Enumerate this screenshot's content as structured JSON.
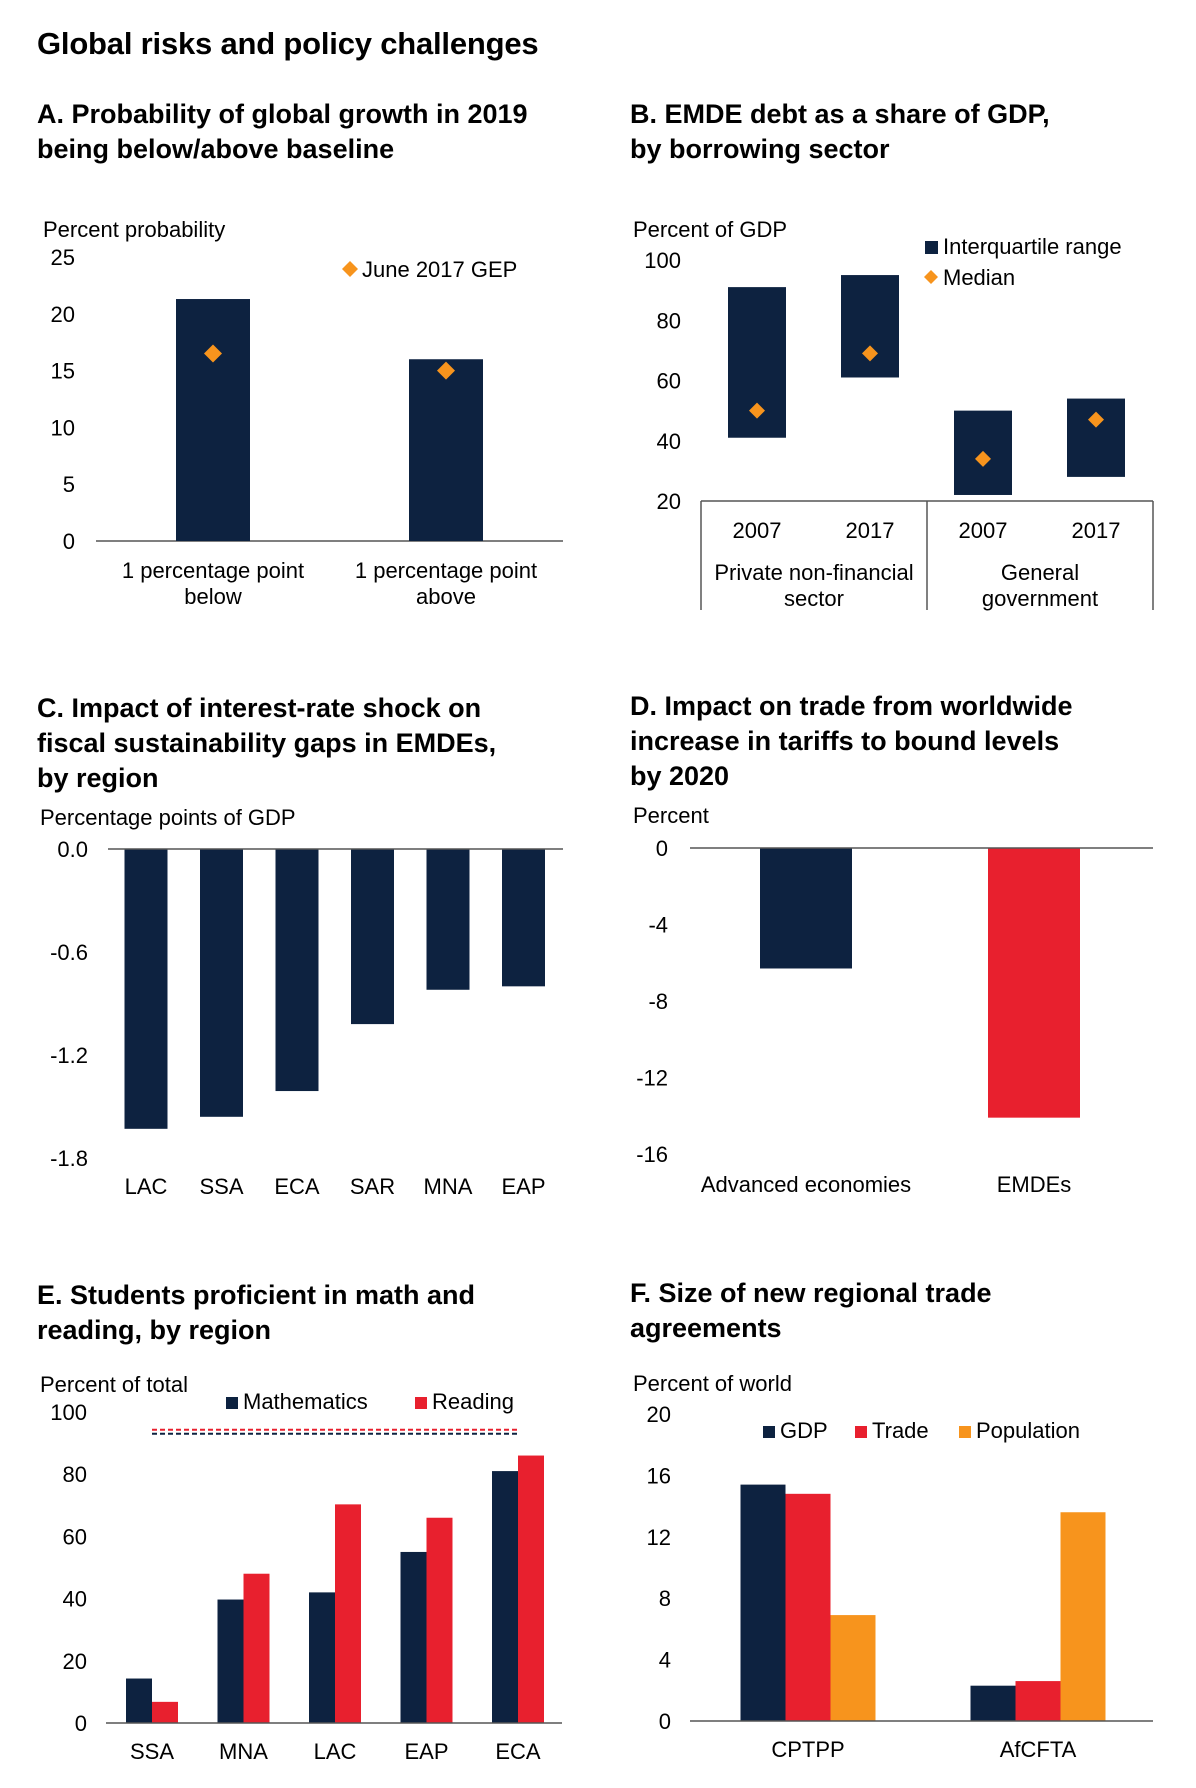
{
  "page_title": "Global risks and policy challenges",
  "colors": {
    "navy": "#0d2240",
    "red": "#e8202e",
    "orange": "#f7941d",
    "axis": "#555555"
  },
  "panels": {
    "A": {
      "title_lines": [
        "A. Probability of global growth in 2019",
        "being below/above baseline"
      ]
    },
    "B": {
      "title_lines": [
        "B. EMDE debt as a share of GDP,",
        "by borrowing sector"
      ]
    },
    "C": {
      "title_lines": [
        "C. Impact of interest-rate shock on",
        "fiscal sustainability gaps in EMDEs,",
        "by region"
      ]
    },
    "D": {
      "title_lines": [
        "D. Impact on trade from worldwide",
        "increase in tariffs to bound levels",
        "by 2020"
      ]
    },
    "E": {
      "title_lines": [
        "E. Students proficient in math and",
        "reading, by region"
      ]
    },
    "F": {
      "title_lines": [
        "F. Size of new regional trade",
        "agreements"
      ]
    }
  },
  "chart_data": [
    {
      "id": "A",
      "type": "bar",
      "ylabel": "Percent probability",
      "ylim": [
        0,
        25
      ],
      "yticks": [
        0,
        5,
        10,
        15,
        20,
        25
      ],
      "categories": [
        [
          "1 percentage point",
          "below"
        ],
        [
          "1 percentage point",
          "above"
        ]
      ],
      "series": [
        {
          "values": [
            21.3,
            16.0
          ]
        },
        {
          "name": "June 2017 GEP",
          "marker": "diamond",
          "values": [
            16.5,
            15.0
          ]
        }
      ]
    },
    {
      "id": "B",
      "type": "bar",
      "ylabel": "Percent of GDP",
      "ylim": [
        20,
        100
      ],
      "yticks": [
        20,
        40,
        60,
        80,
        100
      ],
      "legend": [
        "Interquartile range",
        "Median"
      ],
      "categories": [
        "2007",
        "2017",
        "2007",
        "2017"
      ],
      "groups": [
        [
          "Private non-financial",
          "sector"
        ],
        [
          "General",
          "government"
        ]
      ],
      "series": [
        {
          "name": "Interquartile range",
          "low": [
            41,
            61,
            22,
            28
          ],
          "high": [
            91,
            95,
            50,
            54
          ]
        },
        {
          "name": "Median",
          "marker": "diamond",
          "values": [
            50,
            69,
            34,
            47
          ]
        }
      ]
    },
    {
      "id": "C",
      "type": "bar",
      "ylabel": "Percentage points of GDP",
      "ylim": [
        -1.8,
        0
      ],
      "yticks": [
        "0.0",
        "-0.6",
        "-1.2",
        "-1.8"
      ],
      "categories": [
        "LAC",
        "SSA",
        "ECA",
        "SAR",
        "MNA",
        "EAP"
      ],
      "values": [
        -1.63,
        -1.56,
        -1.41,
        -1.02,
        -0.82,
        -0.8
      ]
    },
    {
      "id": "D",
      "type": "bar",
      "ylabel": "Percent",
      "ylim": [
        -16,
        0
      ],
      "yticks": [
        0,
        -4,
        -8,
        -12,
        -16
      ],
      "categories": [
        "Advanced economies",
        "EMDEs"
      ],
      "values": [
        -6.3,
        -14.1
      ],
      "colors": [
        "#0d2240",
        "#e8202e"
      ]
    },
    {
      "id": "E",
      "type": "bar",
      "ylabel": "Percent of total",
      "ylim": [
        0,
        100
      ],
      "yticks": [
        0,
        20,
        40,
        60,
        80,
        100
      ],
      "categories": [
        "SSA",
        "MNA",
        "LAC",
        "EAP",
        "ECA"
      ],
      "series": [
        {
          "name": "Mathematics",
          "values": [
            14.3,
            39.7,
            42.0,
            55.0,
            81.0
          ]
        },
        {
          "name": "Reading",
          "values": [
            6.8,
            48.0,
            70.3,
            66.0,
            86.0
          ]
        }
      ],
      "reference_lines": [
        {
          "series": "Mathematics",
          "value": 93.0
        },
        {
          "series": "Reading",
          "value": 94.3
        }
      ]
    },
    {
      "id": "F",
      "type": "bar",
      "ylabel": "Percent of world",
      "ylim": [
        0,
        20
      ],
      "yticks": [
        0,
        4,
        8,
        12,
        16,
        20
      ],
      "categories": [
        "CPTPP",
        "AfCFTA"
      ],
      "series": [
        {
          "name": "GDP",
          "values": [
            15.4,
            2.3
          ]
        },
        {
          "name": "Trade",
          "values": [
            14.8,
            2.6
          ]
        },
        {
          "name": "Population",
          "values": [
            6.9,
            13.6
          ]
        }
      ]
    }
  ]
}
